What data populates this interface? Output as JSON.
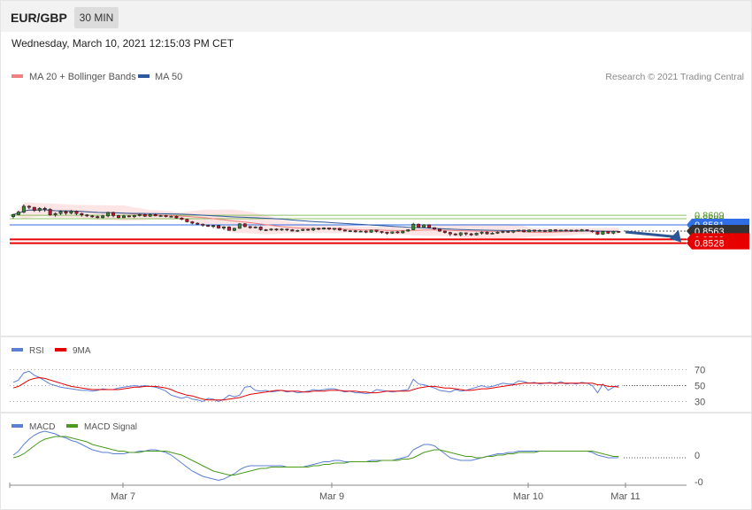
{
  "header": {
    "symbol": "EUR/GBP",
    "timeframe": "30 MIN",
    "datetime": "Wednesday, March 10, 2021 12:15:03 PM CET"
  },
  "legend": {
    "price": [
      {
        "label": "MA 20 + Bollinger Bands",
        "color": "#f08080"
      },
      {
        "label": "MA 50",
        "color": "#2e5a9c"
      }
    ],
    "rsi": [
      {
        "label": "RSI",
        "color": "#5b7fd6"
      },
      {
        "label": "9MA",
        "color": "#e00000"
      }
    ],
    "macd": [
      {
        "label": "MACD",
        "color": "#5b7fd6"
      },
      {
        "label": "MACD Signal",
        "color": "#4a9a1c"
      }
    ],
    "copyright": "Research © 2021 Trading Central"
  },
  "chart_data": {
    "type": "candlestick",
    "symbol": "EUR/GBP",
    "interval": "30 MIN",
    "x_ticks": [
      "Mar 7",
      "Mar 9",
      "Mar 10",
      "Mar 11"
    ],
    "levels": [
      {
        "value": 0.8609,
        "label": "0.8609",
        "kind": "resistance",
        "color": "#8cc060",
        "text_color": "#4a9a1c"
      },
      {
        "value": 0.8599,
        "label": "0.8599",
        "kind": "resistance",
        "color": "#8cc060",
        "text_color": "#4a9a1c"
      },
      {
        "value": 0.8581,
        "label": "0.8581",
        "kind": "pivot",
        "color": "#2f6ee6"
      },
      {
        "value": 0.8563,
        "label": "0.8563",
        "kind": "last",
        "color": "#333333"
      },
      {
        "value": 0.8539,
        "label": "0.8539",
        "kind": "support",
        "color": "#e60000"
      },
      {
        "value": 0.8528,
        "label": "0.8528",
        "kind": "support",
        "color": "#e60000"
      }
    ],
    "candles": [
      [
        0.8605,
        0.8611,
        0.86,
        0.8613
      ],
      [
        0.8611,
        0.8618,
        0.8609,
        0.8622
      ],
      [
        0.8618,
        0.8635,
        0.8615,
        0.864
      ],
      [
        0.8635,
        0.8632,
        0.8627,
        0.8638
      ],
      [
        0.8632,
        0.8623,
        0.8619,
        0.8633
      ],
      [
        0.8623,
        0.8629,
        0.8618,
        0.8632
      ],
      [
        0.8629,
        0.8626,
        0.8619,
        0.8633
      ],
      [
        0.8626,
        0.861,
        0.8608,
        0.8629
      ],
      [
        0.861,
        0.8614,
        0.8605,
        0.8617
      ],
      [
        0.8614,
        0.862,
        0.861,
        0.8623
      ],
      [
        0.862,
        0.8615,
        0.861,
        0.8623
      ],
      [
        0.8615,
        0.8621,
        0.8612,
        0.8624
      ],
      [
        0.8621,
        0.8614,
        0.8609,
        0.8623
      ],
      [
        0.8614,
        0.861,
        0.8605,
        0.8616
      ],
      [
        0.861,
        0.8607,
        0.8604,
        0.8612
      ],
      [
        0.8607,
        0.8605,
        0.8602,
        0.861
      ],
      [
        0.8605,
        0.8602,
        0.86,
        0.8608
      ],
      [
        0.8602,
        0.8607,
        0.86,
        0.861
      ],
      [
        0.8607,
        0.8617,
        0.8603,
        0.8619
      ],
      [
        0.8617,
        0.8608,
        0.8603,
        0.8619
      ],
      [
        0.8608,
        0.8602,
        0.86,
        0.861
      ],
      [
        0.8602,
        0.8607,
        0.8601,
        0.861
      ],
      [
        0.8607,
        0.8605,
        0.8603,
        0.8609
      ],
      [
        0.8605,
        0.8608,
        0.8601,
        0.861
      ],
      [
        0.8608,
        0.8611,
        0.8605,
        0.8613
      ],
      [
        0.8611,
        0.8606,
        0.8604,
        0.8613
      ],
      [
        0.8606,
        0.8611,
        0.8604,
        0.8614
      ],
      [
        0.8611,
        0.8607,
        0.8606,
        0.8613
      ],
      [
        0.8607,
        0.8608,
        0.8605,
        0.861
      ],
      [
        0.8608,
        0.8605,
        0.8603,
        0.861
      ],
      [
        0.8605,
        0.8606,
        0.8603,
        0.8608
      ],
      [
        0.8606,
        0.8601,
        0.8599,
        0.8608
      ],
      [
        0.8601,
        0.8597,
        0.8595,
        0.8603
      ],
      [
        0.8597,
        0.859,
        0.8588,
        0.8599
      ],
      [
        0.859,
        0.8586,
        0.8583,
        0.8592
      ],
      [
        0.8586,
        0.8583,
        0.8581,
        0.8588
      ],
      [
        0.8583,
        0.858,
        0.8576,
        0.8585
      ],
      [
        0.858,
        0.8577,
        0.8575,
        0.8582
      ],
      [
        0.8577,
        0.8579,
        0.8572,
        0.8581
      ],
      [
        0.8579,
        0.8572,
        0.857,
        0.8581
      ],
      [
        0.8572,
        0.8575,
        0.8567,
        0.8577
      ],
      [
        0.8575,
        0.8565,
        0.8565,
        0.8577
      ],
      [
        0.8565,
        0.8571,
        0.8563,
        0.8573
      ],
      [
        0.8571,
        0.8584,
        0.857,
        0.8586
      ],
      [
        0.8584,
        0.8576,
        0.8574,
        0.8586
      ],
      [
        0.8576,
        0.8573,
        0.857,
        0.8578
      ],
      [
        0.8573,
        0.8575,
        0.8571,
        0.8577
      ],
      [
        0.8575,
        0.8567,
        0.8564,
        0.8577
      ],
      [
        0.8567,
        0.8566,
        0.8563,
        0.8569
      ],
      [
        0.8566,
        0.8569,
        0.8564,
        0.8571
      ],
      [
        0.8569,
        0.8566,
        0.8564,
        0.8571
      ],
      [
        0.8566,
        0.8569,
        0.8564,
        0.8571
      ],
      [
        0.8569,
        0.8567,
        0.8563,
        0.857
      ],
      [
        0.8567,
        0.8563,
        0.8562,
        0.8569
      ],
      [
        0.8563,
        0.8565,
        0.8561,
        0.8567
      ],
      [
        0.8565,
        0.8568,
        0.8563,
        0.857
      ],
      [
        0.8568,
        0.8566,
        0.8564,
        0.857
      ],
      [
        0.8566,
        0.8571,
        0.8563,
        0.8573
      ],
      [
        0.8571,
        0.8569,
        0.8566,
        0.8573
      ],
      [
        0.8569,
        0.8572,
        0.8567,
        0.8574
      ],
      [
        0.8572,
        0.8569,
        0.8566,
        0.8573
      ],
      [
        0.8569,
        0.8571,
        0.8565,
        0.8572
      ],
      [
        0.8571,
        0.8566,
        0.8564,
        0.8573
      ],
      [
        0.8566,
        0.8563,
        0.8562,
        0.8568
      ],
      [
        0.8563,
        0.8564,
        0.8561,
        0.8566
      ],
      [
        0.8564,
        0.8561,
        0.8559,
        0.8566
      ],
      [
        0.8561,
        0.8563,
        0.856,
        0.8565
      ],
      [
        0.8563,
        0.856,
        0.8557,
        0.8565
      ],
      [
        0.856,
        0.8566,
        0.8558,
        0.8567
      ],
      [
        0.8566,
        0.8562,
        0.8559,
        0.8567
      ],
      [
        0.8562,
        0.856,
        0.8556,
        0.8563
      ],
      [
        0.856,
        0.8557,
        0.8553,
        0.8561
      ],
      [
        0.8557,
        0.8561,
        0.8555,
        0.8562
      ],
      [
        0.8561,
        0.8558,
        0.8556,
        0.8563
      ],
      [
        0.8558,
        0.8563,
        0.8556,
        0.8565
      ],
      [
        0.8563,
        0.8567,
        0.8561,
        0.8568
      ],
      [
        0.8567,
        0.8583,
        0.8566,
        0.8587
      ],
      [
        0.8583,
        0.8574,
        0.8572,
        0.8585
      ],
      [
        0.8574,
        0.8581,
        0.8573,
        0.8583
      ],
      [
        0.8581,
        0.8573,
        0.8571,
        0.8583
      ],
      [
        0.8573,
        0.8569,
        0.8567,
        0.8574
      ],
      [
        0.8569,
        0.8563,
        0.8561,
        0.857
      ],
      [
        0.8563,
        0.8559,
        0.8556,
        0.8564
      ],
      [
        0.8559,
        0.8555,
        0.8549,
        0.8561
      ],
      [
        0.8555,
        0.8552,
        0.855,
        0.8557
      ],
      [
        0.8552,
        0.8558,
        0.8548,
        0.856
      ],
      [
        0.8558,
        0.8555,
        0.855,
        0.8559
      ],
      [
        0.8555,
        0.8552,
        0.8549,
        0.8558
      ],
      [
        0.8552,
        0.8557,
        0.855,
        0.8559
      ],
      [
        0.8557,
        0.856,
        0.8553,
        0.8562
      ],
      [
        0.856,
        0.8555,
        0.8553,
        0.8562
      ],
      [
        0.8555,
        0.8557,
        0.8554,
        0.856
      ],
      [
        0.8557,
        0.856,
        0.8555,
        0.8562
      ],
      [
        0.856,
        0.8562,
        0.8557,
        0.8564
      ],
      [
        0.8562,
        0.856,
        0.8558,
        0.8563
      ],
      [
        0.856,
        0.8564,
        0.8557,
        0.8566
      ],
      [
        0.8564,
        0.8566,
        0.8561,
        0.8567
      ],
      [
        0.8566,
        0.8561,
        0.8559,
        0.8567
      ],
      [
        0.8561,
        0.8566,
        0.856,
        0.8568
      ],
      [
        0.8566,
        0.8563,
        0.856,
        0.8567
      ],
      [
        0.8563,
        0.8565,
        0.8561,
        0.8568
      ],
      [
        0.8565,
        0.8562,
        0.856,
        0.8567
      ],
      [
        0.8562,
        0.8567,
        0.856,
        0.8568
      ],
      [
        0.8567,
        0.8563,
        0.8561,
        0.8568
      ],
      [
        0.8563,
        0.8566,
        0.8562,
        0.8567
      ],
      [
        0.8566,
        0.8564,
        0.8562,
        0.8568
      ],
      [
        0.8564,
        0.8566,
        0.8561,
        0.8567
      ],
      [
        0.8566,
        0.8563,
        0.8561,
        0.8567
      ],
      [
        0.8563,
        0.8567,
        0.8562,
        0.8569
      ],
      [
        0.8567,
        0.8564,
        0.8562,
        0.8568
      ],
      [
        0.8564,
        0.8561,
        0.8559,
        0.8566
      ],
      [
        0.8561,
        0.8554,
        0.8552,
        0.8563
      ],
      [
        0.8554,
        0.8562,
        0.8552,
        0.8564
      ],
      [
        0.8562,
        0.8557,
        0.8555,
        0.8563
      ],
      [
        0.8557,
        0.8562,
        0.8554,
        0.8564
      ],
      [
        0.8562,
        0.856,
        0.8558,
        0.8563
      ]
    ],
    "rsi": {
      "levels": [
        70,
        50,
        30
      ],
      "rsi": [
        54,
        57,
        66,
        68,
        63,
        60,
        56,
        52,
        50,
        48,
        47,
        46,
        45,
        44,
        44,
        43,
        44,
        46,
        45,
        45,
        47,
        48,
        49,
        50,
        49,
        50,
        49,
        48,
        46,
        43,
        38,
        36,
        34,
        36,
        33,
        32,
        30,
        34,
        33,
        30,
        33,
        38,
        36,
        38,
        48,
        49,
        44,
        43,
        44,
        42,
        43,
        44,
        42,
        43,
        41,
        42,
        43,
        45,
        44,
        45,
        46,
        46,
        44,
        42,
        43,
        41,
        41,
        40,
        41,
        45,
        44,
        43,
        42,
        43,
        44,
        45,
        58,
        52,
        51,
        49,
        47,
        44,
        43,
        42,
        45,
        43,
        44,
        46,
        48,
        50,
        48,
        49,
        51,
        53,
        52,
        52,
        56,
        55,
        53,
        54,
        52,
        53,
        54,
        52,
        55,
        52,
        53,
        52,
        54,
        53,
        50,
        41,
        52,
        44,
        48,
        50
      ],
      "ma9": [
        47,
        49,
        53,
        57,
        59,
        60,
        59,
        57,
        55,
        53,
        51,
        49,
        48,
        47,
        46,
        45,
        45,
        45,
        45,
        45,
        45,
        46,
        47,
        48,
        48,
        49,
        49,
        49,
        48,
        47,
        45,
        42,
        40,
        38,
        37,
        35,
        33,
        32,
        32,
        32,
        32,
        33,
        34,
        35,
        37,
        39,
        40,
        41,
        42,
        43,
        44,
        44,
        43,
        43,
        43,
        42,
        42,
        43,
        43,
        43,
        44,
        44,
        44,
        43,
        43,
        43,
        42,
        42,
        41,
        41,
        42,
        43,
        43,
        43,
        43,
        43,
        45,
        47,
        48,
        49,
        49,
        48,
        47,
        47,
        46,
        45,
        44,
        44,
        45,
        46,
        46,
        47,
        48,
        49,
        50,
        51,
        52,
        53,
        53,
        53,
        53,
        53,
        53,
        53,
        53,
        53,
        53,
        53,
        53,
        53,
        53,
        51,
        51,
        49,
        49,
        48
      ]
    },
    "macd": {
      "zero_label": "0",
      "neg_label": "-0",
      "macd": [
        0.2,
        0.5,
        1.0,
        1.4,
        1.7,
        1.9,
        2.0,
        1.9,
        1.8,
        1.6,
        1.5,
        1.3,
        1.2,
        1.0,
        0.8,
        0.6,
        0.5,
        0.4,
        0.4,
        0.3,
        0.3,
        0.3,
        0.4,
        0.4,
        0.5,
        0.5,
        0.6,
        0.6,
        0.5,
        0.4,
        0.2,
        -0.1,
        -0.4,
        -0.7,
        -1.0,
        -1.2,
        -1.4,
        -1.5,
        -1.6,
        -1.7,
        -1.6,
        -1.4,
        -1.2,
        -0.9,
        -0.7,
        -0.6,
        -0.6,
        -0.6,
        -0.6,
        -0.6,
        -0.6,
        -0.6,
        -0.7,
        -0.7,
        -0.7,
        -0.7,
        -0.6,
        -0.5,
        -0.4,
        -0.3,
        -0.3,
        -0.2,
        -0.2,
        -0.3,
        -0.3,
        -0.3,
        -0.3,
        -0.3,
        -0.2,
        -0.2,
        -0.2,
        -0.2,
        -0.2,
        -0.1,
        0.0,
        0.1,
        0.6,
        0.8,
        1.0,
        1.0,
        0.9,
        0.6,
        0.3,
        0.0,
        -0.1,
        -0.2,
        -0.2,
        -0.2,
        -0.1,
        0.0,
        0.1,
        0.2,
        0.3,
        0.3,
        0.4,
        0.4,
        0.5,
        0.5,
        0.5,
        0.5,
        0.5,
        0.5,
        0.5,
        0.5,
        0.5,
        0.5,
        0.5,
        0.5,
        0.5,
        0.5,
        0.4,
        0.2,
        0.1,
        0.0,
        0.0,
        0.0
      ],
      "signal": [
        0.0,
        0.1,
        0.3,
        0.6,
        0.9,
        1.2,
        1.4,
        1.5,
        1.6,
        1.6,
        1.6,
        1.5,
        1.4,
        1.3,
        1.2,
        1.0,
        0.9,
        0.8,
        0.7,
        0.6,
        0.5,
        0.5,
        0.4,
        0.4,
        0.4,
        0.5,
        0.5,
        0.5,
        0.5,
        0.5,
        0.4,
        0.3,
        0.2,
        0.0,
        -0.2,
        -0.4,
        -0.6,
        -0.8,
        -1.0,
        -1.1,
        -1.2,
        -1.3,
        -1.3,
        -1.2,
        -1.1,
        -1.0,
        -0.9,
        -0.8,
        -0.8,
        -0.7,
        -0.7,
        -0.7,
        -0.7,
        -0.7,
        -0.7,
        -0.7,
        -0.7,
        -0.6,
        -0.6,
        -0.5,
        -0.5,
        -0.4,
        -0.4,
        -0.4,
        -0.3,
        -0.3,
        -0.3,
        -0.3,
        -0.3,
        -0.3,
        -0.2,
        -0.2,
        -0.2,
        -0.2,
        -0.1,
        -0.1,
        0.0,
        0.2,
        0.4,
        0.5,
        0.6,
        0.6,
        0.5,
        0.4,
        0.3,
        0.2,
        0.1,
        0.1,
        0.0,
        0.0,
        0.1,
        0.1,
        0.2,
        0.2,
        0.3,
        0.3,
        0.4,
        0.4,
        0.4,
        0.4,
        0.5,
        0.5,
        0.5,
        0.5,
        0.5,
        0.5,
        0.5,
        0.5,
        0.5,
        0.5,
        0.5,
        0.4,
        0.3,
        0.2,
        0.1,
        0.1
      ]
    }
  }
}
